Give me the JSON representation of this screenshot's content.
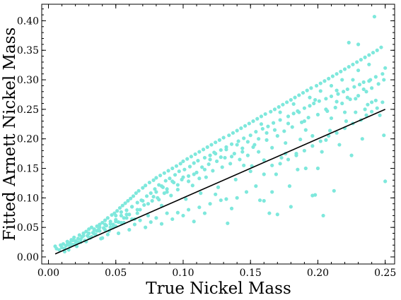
{
  "chart_data": {
    "type": "scatter",
    "xlabel": "True Nickel Mass",
    "ylabel": "Fitted Arnett Nickel Mass",
    "xlim": [
      -0.005,
      0.257
    ],
    "ylim": [
      -0.012,
      0.428
    ],
    "x_ticks": [
      0.0,
      0.05,
      0.1,
      0.15,
      0.2,
      0.25
    ],
    "x_tick_labels": [
      "0.00",
      "0.05",
      "0.10",
      "0.15",
      "0.20",
      "0.25"
    ],
    "y_ticks": [
      0.0,
      0.05,
      0.1,
      0.15,
      0.2,
      0.25,
      0.3,
      0.35,
      0.4
    ],
    "y_tick_labels": [
      "0.00",
      "0.05",
      "0.10",
      "0.15",
      "0.20",
      "0.25",
      "0.30",
      "0.35",
      "0.40"
    ],
    "grid": false,
    "marker_color": "#7ee8dc",
    "line_color": "#000000",
    "reference_line": {
      "x": [
        0.005,
        0.25
      ],
      "y": [
        0.005,
        0.25
      ]
    },
    "points": [
      [
        0.005,
        0.018
      ],
      [
        0.006,
        0.014
      ],
      [
        0.008,
        0.012
      ],
      [
        0.009,
        0.02
      ],
      [
        0.01,
        0.016
      ],
      [
        0.011,
        0.022
      ],
      [
        0.012,
        0.009
      ],
      [
        0.013,
        0.019
      ],
      [
        0.014,
        0.026
      ],
      [
        0.015,
        0.012
      ],
      [
        0.016,
        0.024
      ],
      [
        0.017,
        0.029
      ],
      [
        0.018,
        0.021
      ],
      [
        0.019,
        0.033
      ],
      [
        0.02,
        0.027
      ],
      [
        0.021,
        0.018
      ],
      [
        0.022,
        0.031
      ],
      [
        0.023,
        0.037
      ],
      [
        0.024,
        0.025
      ],
      [
        0.025,
        0.034
      ],
      [
        0.026,
        0.04
      ],
      [
        0.027,
        0.028
      ],
      [
        0.028,
        0.043
      ],
      [
        0.029,
        0.036
      ],
      [
        0.03,
        0.047
      ],
      [
        0.031,
        0.032
      ],
      [
        0.032,
        0.05
      ],
      [
        0.033,
        0.041
      ],
      [
        0.034,
        0.045
      ],
      [
        0.035,
        0.038
      ],
      [
        0.036,
        0.052
      ],
      [
        0.037,
        0.046
      ],
      [
        0.038,
        0.055
      ],
      [
        0.039,
        0.031
      ],
      [
        0.04,
        0.058
      ],
      [
        0.041,
        0.049
      ],
      [
        0.042,
        0.062
      ],
      [
        0.043,
        0.053
      ],
      [
        0.044,
        0.066
      ],
      [
        0.045,
        0.044
      ],
      [
        0.046,
        0.06
      ],
      [
        0.047,
        0.071
      ],
      [
        0.048,
        0.055
      ],
      [
        0.049,
        0.074
      ],
      [
        0.05,
        0.063
      ],
      [
        0.051,
        0.078
      ],
      [
        0.052,
        0.059
      ],
      [
        0.053,
        0.083
      ],
      [
        0.054,
        0.07
      ],
      [
        0.055,
        0.087
      ],
      [
        0.056,
        0.066
      ],
      [
        0.057,
        0.091
      ],
      [
        0.058,
        0.079
      ],
      [
        0.059,
        0.095
      ],
      [
        0.06,
        0.072
      ],
      [
        0.061,
        0.099
      ],
      [
        0.062,
        0.085
      ],
      [
        0.063,
        0.103
      ],
      [
        0.064,
        0.064
      ],
      [
        0.065,
        0.108
      ],
      [
        0.066,
        0.092
      ],
      [
        0.067,
        0.112
      ],
      [
        0.068,
        0.08
      ],
      [
        0.069,
        0.096
      ],
      [
        0.07,
        0.117
      ],
      [
        0.071,
        0.088
      ],
      [
        0.072,
        0.121
      ],
      [
        0.073,
        0.103
      ],
      [
        0.074,
        0.07
      ],
      [
        0.075,
        0.126
      ],
      [
        0.076,
        0.108
      ],
      [
        0.077,
        0.095
      ],
      [
        0.078,
        0.13
      ],
      [
        0.079,
        0.115
      ],
      [
        0.08,
        0.134
      ],
      [
        0.081,
        0.1
      ],
      [
        0.082,
        0.122
      ],
      [
        0.083,
        0.138
      ],
      [
        0.084,
        0.087
      ],
      [
        0.085,
        0.118
      ],
      [
        0.086,
        0.142
      ],
      [
        0.087,
        0.129
      ],
      [
        0.088,
        0.11
      ],
      [
        0.089,
        0.146
      ],
      [
        0.09,
        0.133
      ],
      [
        0.091,
        0.104
      ],
      [
        0.092,
        0.15
      ],
      [
        0.093,
        0.126
      ],
      [
        0.094,
        0.139
      ],
      [
        0.095,
        0.154
      ],
      [
        0.096,
        0.114
      ],
      [
        0.097,
        0.145
      ],
      [
        0.098,
        0.158
      ],
      [
        0.099,
        0.131
      ],
      [
        0.1,
        0.162
      ],
      [
        0.101,
        0.148
      ],
      [
        0.102,
        0.098
      ],
      [
        0.103,
        0.166
      ],
      [
        0.104,
        0.137
      ],
      [
        0.105,
        0.153
      ],
      [
        0.106,
        0.17
      ],
      [
        0.107,
        0.121
      ],
      [
        0.108,
        0.159
      ],
      [
        0.109,
        0.174
      ],
      [
        0.11,
        0.143
      ],
      [
        0.111,
        0.163
      ],
      [
        0.112,
        0.178
      ],
      [
        0.113,
        0.108
      ],
      [
        0.114,
        0.152
      ],
      [
        0.115,
        0.182
      ],
      [
        0.116,
        0.168
      ],
      [
        0.117,
        0.135
      ],
      [
        0.118,
        0.186
      ],
      [
        0.119,
        0.157
      ],
      [
        0.12,
        0.172
      ],
      [
        0.121,
        0.19
      ],
      [
        0.122,
        0.146
      ],
      [
        0.123,
        0.177
      ],
      [
        0.124,
        0.194
      ],
      [
        0.125,
        0.162
      ],
      [
        0.126,
        0.118
      ],
      [
        0.127,
        0.198
      ],
      [
        0.128,
        0.181
      ],
      [
        0.129,
        0.152
      ],
      [
        0.13,
        0.202
      ],
      [
        0.131,
        0.168
      ],
      [
        0.132,
        0.186
      ],
      [
        0.133,
        0.057
      ],
      [
        0.134,
        0.206
      ],
      [
        0.135,
        0.158
      ],
      [
        0.136,
        0.191
      ],
      [
        0.137,
        0.21
      ],
      [
        0.138,
        0.175
      ],
      [
        0.139,
        0.131
      ],
      [
        0.14,
        0.214
      ],
      [
        0.141,
        0.196
      ],
      [
        0.142,
        0.165
      ],
      [
        0.143,
        0.218
      ],
      [
        0.144,
        0.184
      ],
      [
        0.145,
        0.201
      ],
      [
        0.146,
        0.222
      ],
      [
        0.147,
        0.11
      ],
      [
        0.148,
        0.172
      ],
      [
        0.149,
        0.226
      ],
      [
        0.15,
        0.206
      ],
      [
        0.151,
        0.154
      ],
      [
        0.152,
        0.23
      ],
      [
        0.153,
        0.19
      ],
      [
        0.154,
        0.212
      ],
      [
        0.155,
        0.234
      ],
      [
        0.156,
        0.178
      ],
      [
        0.157,
        0.096
      ],
      [
        0.158,
        0.238
      ],
      [
        0.159,
        0.217
      ],
      [
        0.16,
        0.164
      ],
      [
        0.161,
        0.242
      ],
      [
        0.162,
        0.198
      ],
      [
        0.163,
        0.221
      ],
      [
        0.164,
        0.074
      ],
      [
        0.165,
        0.246
      ],
      [
        0.166,
        0.185
      ],
      [
        0.167,
        0.227
      ],
      [
        0.168,
        0.25
      ],
      [
        0.169,
        0.14
      ],
      [
        0.17,
        0.205
      ],
      [
        0.171,
        0.254
      ],
      [
        0.172,
        0.232
      ],
      [
        0.173,
        0.168
      ],
      [
        0.174,
        0.258
      ],
      [
        0.175,
        0.213
      ],
      [
        0.176,
        0.193
      ],
      [
        0.177,
        0.262
      ],
      [
        0.178,
        0.238
      ],
      [
        0.179,
        0.12
      ],
      [
        0.18,
        0.266
      ],
      [
        0.181,
        0.22
      ],
      [
        0.182,
        0.243
      ],
      [
        0.183,
        0.27
      ],
      [
        0.184,
        0.175
      ],
      [
        0.185,
        0.247
      ],
      [
        0.186,
        0.274
      ],
      [
        0.187,
        0.199
      ],
      [
        0.188,
        0.228
      ],
      [
        0.189,
        0.278
      ],
      [
        0.19,
        0.252
      ],
      [
        0.191,
        0.15
      ],
      [
        0.192,
        0.282
      ],
      [
        0.193,
        0.236
      ],
      [
        0.194,
        0.256
      ],
      [
        0.195,
        0.286
      ],
      [
        0.196,
        0.205
      ],
      [
        0.197,
        0.26
      ],
      [
        0.198,
        0.105
      ],
      [
        0.199,
        0.29
      ],
      [
        0.2,
        0.241
      ],
      [
        0.201,
        0.264
      ],
      [
        0.202,
        0.294
      ],
      [
        0.203,
        0.178
      ],
      [
        0.204,
        0.07
      ],
      [
        0.205,
        0.298
      ],
      [
        0.206,
        0.268
      ],
      [
        0.207,
        0.247
      ],
      [
        0.208,
        0.302
      ],
      [
        0.209,
        0.214
      ],
      [
        0.21,
        0.272
      ],
      [
        0.211,
        0.306
      ],
      [
        0.212,
        0.112
      ],
      [
        0.213,
        0.253
      ],
      [
        0.214,
        0.31
      ],
      [
        0.215,
        0.276
      ],
      [
        0.216,
        0.19
      ],
      [
        0.217,
        0.314
      ],
      [
        0.218,
        0.26
      ],
      [
        0.219,
        0.28
      ],
      [
        0.22,
        0.318
      ],
      [
        0.221,
        0.23
      ],
      [
        0.222,
        0.284
      ],
      [
        0.223,
        0.322
      ],
      [
        0.224,
        0.267
      ],
      [
        0.225,
        0.172
      ],
      [
        0.226,
        0.326
      ],
      [
        0.227,
        0.288
      ],
      [
        0.228,
        0.245
      ],
      [
        0.229,
        0.33
      ],
      [
        0.23,
        0.273
      ],
      [
        0.231,
        0.292
      ],
      [
        0.232,
        0.334
      ],
      [
        0.233,
        0.2
      ],
      [
        0.234,
        0.296
      ],
      [
        0.235,
        0.338
      ],
      [
        0.236,
        0.28
      ],
      [
        0.237,
        0.258
      ],
      [
        0.238,
        0.342
      ],
      [
        0.239,
        0.3
      ],
      [
        0.24,
        0.286
      ],
      [
        0.241,
        0.346
      ],
      [
        0.242,
        0.407
      ],
      [
        0.243,
        0.305
      ],
      [
        0.244,
        0.35
      ],
      [
        0.245,
        0.293
      ],
      [
        0.246,
        0.24
      ],
      [
        0.247,
        0.355
      ],
      [
        0.248,
        0.31
      ],
      [
        0.249,
        0.3
      ],
      [
        0.25,
        0.128
      ],
      [
        0.25,
        0.32
      ],
      [
        0.249,
        0.206
      ],
      [
        0.243,
        0.265
      ],
      [
        0.238,
        0.298
      ],
      [
        0.23,
        0.36
      ],
      [
        0.223,
        0.363
      ],
      [
        0.22,
        0.245
      ],
      [
        0.214,
        0.263
      ],
      [
        0.21,
        0.235
      ],
      [
        0.206,
        0.198
      ],
      [
        0.2,
        0.15
      ],
      [
        0.196,
        0.104
      ],
      [
        0.191,
        0.215
      ],
      [
        0.185,
        0.148
      ],
      [
        0.18,
        0.085
      ],
      [
        0.176,
        0.175
      ],
      [
        0.17,
        0.072
      ],
      [
        0.166,
        0.11
      ],
      [
        0.16,
        0.095
      ],
      [
        0.154,
        0.12
      ],
      [
        0.15,
        0.145
      ],
      [
        0.145,
        0.155
      ],
      [
        0.14,
        0.1
      ],
      [
        0.136,
        0.082
      ],
      [
        0.132,
        0.098
      ],
      [
        0.128,
        0.096
      ],
      [
        0.124,
        0.106
      ],
      [
        0.12,
        0.09
      ],
      [
        0.116,
        0.074
      ],
      [
        0.112,
        0.084
      ],
      [
        0.108,
        0.06
      ],
      [
        0.104,
        0.08
      ],
      [
        0.1,
        0.07
      ],
      [
        0.096,
        0.075
      ],
      [
        0.092,
        0.064
      ],
      [
        0.088,
        0.074
      ],
      [
        0.084,
        0.056
      ],
      [
        0.08,
        0.066
      ],
      [
        0.076,
        0.059
      ],
      [
        0.072,
        0.05
      ],
      [
        0.068,
        0.062
      ],
      [
        0.064,
        0.055
      ],
      [
        0.06,
        0.046
      ],
      [
        0.056,
        0.058
      ],
      [
        0.052,
        0.04
      ],
      [
        0.048,
        0.05
      ],
      [
        0.044,
        0.038
      ],
      [
        0.04,
        0.032
      ],
      [
        0.036,
        0.044
      ],
      [
        0.032,
        0.034
      ],
      [
        0.028,
        0.026
      ],
      [
        0.024,
        0.03
      ],
      [
        0.02,
        0.022
      ],
      [
        0.016,
        0.018
      ],
      [
        0.012,
        0.014
      ],
      [
        0.158,
        0.225
      ],
      [
        0.162,
        0.21
      ],
      [
        0.168,
        0.215
      ],
      [
        0.172,
        0.245
      ],
      [
        0.178,
        0.226
      ],
      [
        0.182,
        0.259
      ],
      [
        0.186,
        0.245
      ],
      [
        0.19,
        0.23
      ],
      [
        0.194,
        0.27
      ],
      [
        0.198,
        0.266
      ],
      [
        0.202,
        0.281
      ],
      [
        0.206,
        0.25
      ],
      [
        0.21,
        0.29
      ],
      [
        0.214,
        0.282
      ],
      [
        0.218,
        0.3
      ],
      [
        0.222,
        0.27
      ],
      [
        0.226,
        0.3
      ],
      [
        0.23,
        0.316
      ],
      [
        0.234,
        0.284
      ],
      [
        0.238,
        0.326
      ],
      [
        0.12,
        0.165
      ],
      [
        0.124,
        0.175
      ],
      [
        0.128,
        0.169
      ],
      [
        0.132,
        0.182
      ],
      [
        0.136,
        0.17
      ],
      [
        0.14,
        0.19
      ],
      [
        0.144,
        0.178
      ],
      [
        0.148,
        0.195
      ],
      [
        0.152,
        0.186
      ],
      [
        0.156,
        0.2
      ],
      [
        0.08,
        0.11
      ],
      [
        0.084,
        0.12
      ],
      [
        0.088,
        0.115
      ],
      [
        0.092,
        0.128
      ],
      [
        0.096,
        0.122
      ],
      [
        0.1,
        0.135
      ],
      [
        0.104,
        0.128
      ],
      [
        0.108,
        0.14
      ],
      [
        0.112,
        0.133
      ],
      [
        0.116,
        0.148
      ],
      [
        0.05,
        0.07
      ],
      [
        0.054,
        0.076
      ],
      [
        0.058,
        0.072
      ],
      [
        0.062,
        0.085
      ],
      [
        0.066,
        0.08
      ],
      [
        0.07,
        0.095
      ],
      [
        0.074,
        0.09
      ],
      [
        0.078,
        0.102
      ],
      [
        0.082,
        0.097
      ],
      [
        0.086,
        0.108
      ],
      [
        0.03,
        0.04
      ],
      [
        0.034,
        0.047
      ],
      [
        0.038,
        0.044
      ],
      [
        0.042,
        0.055
      ],
      [
        0.046,
        0.05
      ],
      [
        0.05,
        0.06
      ],
      [
        0.054,
        0.058
      ],
      [
        0.058,
        0.066
      ],
      [
        0.062,
        0.064
      ],
      [
        0.066,
        0.074
      ],
      [
        0.014,
        0.021
      ],
      [
        0.018,
        0.028
      ],
      [
        0.022,
        0.025
      ],
      [
        0.026,
        0.036
      ],
      [
        0.03,
        0.033
      ],
      [
        0.034,
        0.039
      ],
      [
        0.038,
        0.05
      ],
      [
        0.042,
        0.046
      ],
      [
        0.046,
        0.056
      ],
      [
        0.05,
        0.052
      ],
      [
        0.16,
        0.14
      ],
      [
        0.166,
        0.155
      ],
      [
        0.172,
        0.158
      ],
      [
        0.178,
        0.165
      ],
      [
        0.184,
        0.172
      ],
      [
        0.19,
        0.18
      ],
      [
        0.196,
        0.188
      ],
      [
        0.202,
        0.196
      ],
      [
        0.208,
        0.205
      ],
      [
        0.214,
        0.21
      ],
      [
        0.22,
        0.218
      ],
      [
        0.226,
        0.226
      ],
      [
        0.232,
        0.232
      ],
      [
        0.236,
        0.24
      ],
      [
        0.24,
        0.246
      ],
      [
        0.244,
        0.252
      ],
      [
        0.248,
        0.262
      ],
      [
        0.24,
        0.262
      ],
      [
        0.235,
        0.25
      ],
      [
        0.228,
        0.268
      ]
    ]
  }
}
